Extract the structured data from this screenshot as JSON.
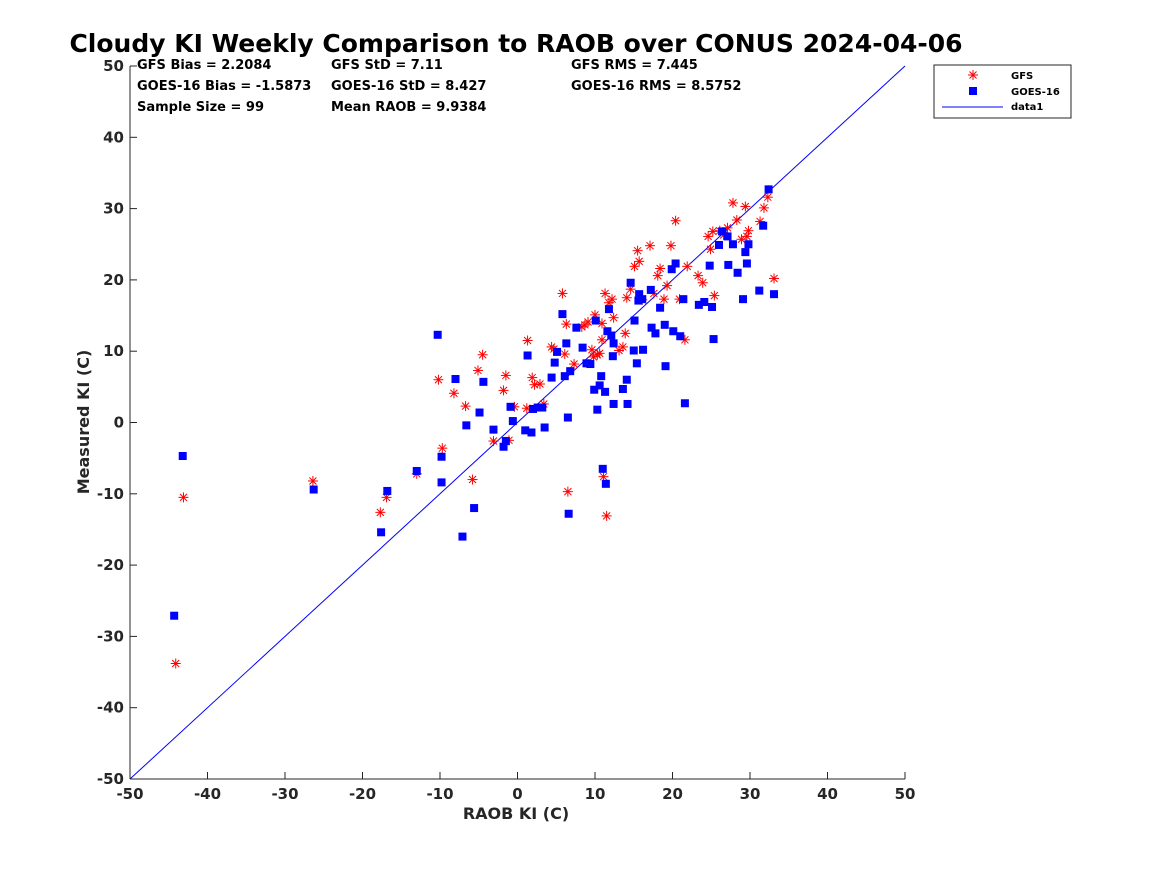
{
  "chart_data": {
    "type": "scatter",
    "title": "Cloudy KI Weekly Comparison to RAOB over CONUS 2024-04-06",
    "xlabel": "RAOB KI (C)",
    "ylabel": "Measured KI (C)",
    "xlim": [
      -50,
      50
    ],
    "ylim": [
      -50,
      50
    ],
    "xticks": [
      -50,
      -40,
      -30,
      -20,
      -10,
      0,
      10,
      20,
      30,
      40,
      50
    ],
    "yticks": [
      -50,
      -40,
      -30,
      -20,
      -10,
      0,
      10,
      20,
      30,
      40,
      50
    ],
    "grid": false,
    "legend_position": "top-right",
    "stats": [
      [
        "GFS Bias = 2.2084",
        "GFS StD = 7.11",
        "GFS RMS = 7.445"
      ],
      [
        "GOES-16 Bias = -1.5873",
        "GOES-16 StD = 8.427",
        "GOES-16 RMS = 8.5752"
      ],
      [
        "Sample Size = 99",
        "Mean RAOB = 9.9384",
        ""
      ]
    ],
    "series": [
      {
        "name": "GFS",
        "marker": "asterisk",
        "color": "#ff0000",
        "points": [
          [
            -44.1,
            -33.8
          ],
          [
            -43.1,
            -10.5
          ],
          [
            -26.4,
            -8.2
          ],
          [
            -17.7,
            -12.6
          ],
          [
            -16.9,
            -10.5
          ],
          [
            -13,
            -7.2
          ],
          [
            -10.2,
            6
          ],
          [
            -9.7,
            -3.6
          ],
          [
            -8.2,
            4.1
          ],
          [
            -6.7,
            2.3
          ],
          [
            -5.8,
            -8
          ],
          [
            -5.1,
            7.3
          ],
          [
            -4.5,
            9.5
          ],
          [
            -3.1,
            -2.6
          ],
          [
            -1.8,
            4.5
          ],
          [
            -1.5,
            6.6
          ],
          [
            -1.1,
            -2.5
          ],
          [
            -0.4,
            2.2
          ],
          [
            1.3,
            11.5
          ],
          [
            1.2,
            2
          ],
          [
            1.9,
            6.3
          ],
          [
            2.2,
            5.3
          ],
          [
            2.9,
            5.4
          ],
          [
            3.4,
            2.6
          ],
          [
            4.4,
            10.6
          ],
          [
            4.7,
            10.3
          ],
          [
            5.8,
            18.1
          ],
          [
            6.1,
            9.6
          ],
          [
            6.3,
            13.8
          ],
          [
            6.5,
            -9.7
          ],
          [
            7.3,
            8.2
          ],
          [
            8.3,
            13.4
          ],
          [
            8.7,
            13.7
          ],
          [
            9.1,
            14.1
          ],
          [
            9.6,
            10.2
          ],
          [
            9.8,
            9.2
          ],
          [
            10,
            15.1
          ],
          [
            10.3,
            9.5
          ],
          [
            10.6,
            9.7
          ],
          [
            10.9,
            13.9
          ],
          [
            10.9,
            11.6
          ],
          [
            11.1,
            -7.6
          ],
          [
            11.3,
            18.1
          ],
          [
            11.5,
            -13.1
          ],
          [
            11.8,
            16.8
          ],
          [
            12.2,
            17.3
          ],
          [
            12.4,
            14.7
          ],
          [
            13.1,
            10.1
          ],
          [
            13.6,
            10.6
          ],
          [
            13.9,
            12.5
          ],
          [
            14.1,
            17.5
          ],
          [
            14.6,
            18.7
          ],
          [
            15.1,
            21.9
          ],
          [
            15.5,
            24.1
          ],
          [
            15.7,
            22.6
          ],
          [
            16.1,
            17.2
          ],
          [
            17.1,
            24.8
          ],
          [
            17.6,
            18.1
          ],
          [
            18.1,
            20.6
          ],
          [
            18.4,
            21.6
          ],
          [
            18.9,
            17.3
          ],
          [
            19.3,
            19.2
          ],
          [
            19.8,
            24.8
          ],
          [
            20.4,
            28.3
          ],
          [
            20.9,
            17.3
          ],
          [
            21.6,
            11.6
          ],
          [
            21.9,
            21.9
          ],
          [
            23.3,
            20.6
          ],
          [
            23.9,
            19.6
          ],
          [
            24.6,
            26.1
          ],
          [
            24.9,
            24.3
          ],
          [
            25.2,
            26.8
          ],
          [
            25.4,
            17.8
          ],
          [
            26.1,
            26.9
          ],
          [
            26.6,
            26.3
          ],
          [
            27.1,
            27.3
          ],
          [
            27.8,
            30.8
          ],
          [
            28.3,
            28.4
          ],
          [
            28.9,
            25.7
          ],
          [
            29.4,
            30.3
          ],
          [
            29.6,
            26.1
          ],
          [
            29.8,
            26.9
          ],
          [
            31.3,
            28.2
          ],
          [
            31.8,
            30.1
          ],
          [
            32.3,
            31.6
          ],
          [
            33.1,
            20.2
          ]
        ]
      },
      {
        "name": "GOES-16",
        "marker": "square",
        "color": "#0000ff",
        "points": [
          [
            -44.3,
            -27.1
          ],
          [
            -43.2,
            -4.7
          ],
          [
            -26.3,
            -9.4
          ],
          [
            -17.6,
            -15.4
          ],
          [
            -16.8,
            -9.6
          ],
          [
            -13,
            -6.8
          ],
          [
            -10.3,
            12.3
          ],
          [
            -9.8,
            -4.8
          ],
          [
            -9.8,
            -8.4
          ],
          [
            -8,
            6.1
          ],
          [
            -7.1,
            -16
          ],
          [
            -6.6,
            -0.4
          ],
          [
            -5.6,
            -12
          ],
          [
            -4.9,
            1.4
          ],
          [
            -4.4,
            5.7
          ],
          [
            -3.1,
            -1
          ],
          [
            -1.8,
            -3.4
          ],
          [
            -1.5,
            -2.6
          ],
          [
            -0.9,
            2.2
          ],
          [
            -0.6,
            0.2
          ],
          [
            1,
            -1.1
          ],
          [
            1.3,
            9.4
          ],
          [
            1.8,
            -1.4
          ],
          [
            2,
            1.9
          ],
          [
            2.6,
            2.1
          ],
          [
            3.2,
            2.1
          ],
          [
            3.5,
            -0.7
          ],
          [
            4.4,
            6.3
          ],
          [
            4.8,
            8.4
          ],
          [
            5.1,
            9.9
          ],
          [
            5.8,
            15.2
          ],
          [
            6.1,
            6.5
          ],
          [
            6.3,
            11.1
          ],
          [
            6.5,
            0.7
          ],
          [
            6.6,
            -12.8
          ],
          [
            6.8,
            7.2
          ],
          [
            7.6,
            13.3
          ],
          [
            8.4,
            10.5
          ],
          [
            8.9,
            8.3
          ],
          [
            9.4,
            8.2
          ],
          [
            9.9,
            4.6
          ],
          [
            10.1,
            14.3
          ],
          [
            10.3,
            1.8
          ],
          [
            10.6,
            5.2
          ],
          [
            10.8,
            6.5
          ],
          [
            11,
            -6.5
          ],
          [
            11.3,
            4.3
          ],
          [
            11.4,
            -8.6
          ],
          [
            11.6,
            12.8
          ],
          [
            11.8,
            15.9
          ],
          [
            12.1,
            12.2
          ],
          [
            12.3,
            9.3
          ],
          [
            12.4,
            2.6
          ],
          [
            12.4,
            11.1
          ],
          [
            13.6,
            4.7
          ],
          [
            14.1,
            6
          ],
          [
            14.2,
            2.6
          ],
          [
            14.6,
            19.6
          ],
          [
            15,
            10.1
          ],
          [
            15.1,
            14.3
          ],
          [
            15.4,
            8.3
          ],
          [
            15.6,
            17.1
          ],
          [
            15.7,
            18
          ],
          [
            16.1,
            17.3
          ],
          [
            16.2,
            10.2
          ],
          [
            17.2,
            18.6
          ],
          [
            17.3,
            13.3
          ],
          [
            17.8,
            12.5
          ],
          [
            18.4,
            16.1
          ],
          [
            19,
            13.7
          ],
          [
            19.1,
            7.9
          ],
          [
            19.9,
            21.5
          ],
          [
            20.1,
            12.8
          ],
          [
            20.4,
            22.3
          ],
          [
            21,
            12.1
          ],
          [
            21.4,
            17.3
          ],
          [
            21.6,
            2.7
          ],
          [
            23.4,
            16.5
          ],
          [
            24.1,
            16.9
          ],
          [
            24.8,
            22
          ],
          [
            25.1,
            16.2
          ],
          [
            25.3,
            11.7
          ],
          [
            26,
            24.9
          ],
          [
            26.4,
            26.8
          ],
          [
            27.1,
            26.1
          ],
          [
            27.2,
            22.1
          ],
          [
            27.8,
            25
          ],
          [
            28.4,
            21
          ],
          [
            29.1,
            17.3
          ],
          [
            29.4,
            23.9
          ],
          [
            29.6,
            22.3
          ],
          [
            29.8,
            25
          ],
          [
            31.2,
            18.5
          ],
          [
            31.7,
            27.6
          ],
          [
            32.4,
            32.7
          ],
          [
            33.1,
            18
          ]
        ]
      },
      {
        "name": "data1",
        "marker": "line",
        "color": "#0000ff",
        "points": [
          [
            -50,
            -50
          ],
          [
            50,
            50
          ]
        ]
      }
    ]
  }
}
